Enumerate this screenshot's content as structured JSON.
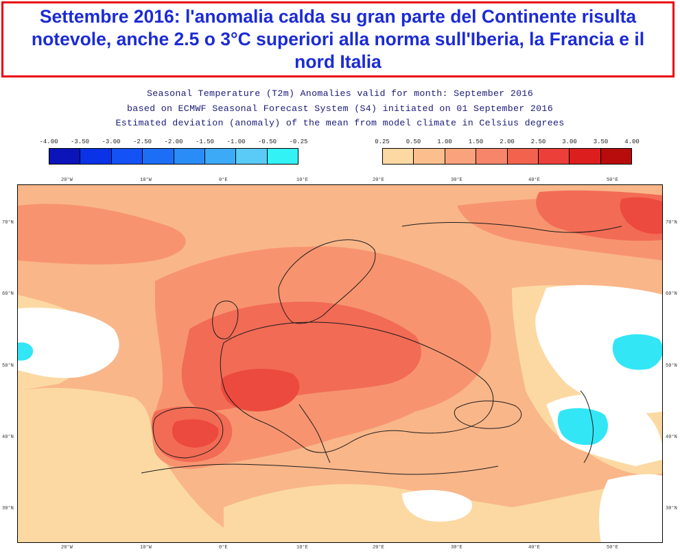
{
  "headline": "Settembre 2016: l'anomalia calda su gran parte del Continente risulta notevole, anche 2.5 o 3°C superiori alla norma sull'Iberia, la Francia e il nord Italia",
  "subtitle": {
    "line1": "Seasonal Temperature (T2m) Anomalies valid for month: September 2016",
    "line2": "based on ECMWF Seasonal Forecast System (S4) initiated on 01 September 2016",
    "line3": "Estimated deviation (anomaly) of the mean from model climate in Celsius degrees"
  },
  "legend_cold": {
    "ticks": [
      "-4.00",
      "-3.50",
      "-3.00",
      "-2.50",
      "-2.00",
      "-1.50",
      "-1.00",
      "-0.50",
      "-0.25"
    ],
    "colors": [
      "#0a14b8",
      "#0a32e6",
      "#1452f5",
      "#1c6ef7",
      "#2a8cf7",
      "#3caaf7",
      "#5acbf7",
      "#33f2f5"
    ]
  },
  "legend_warm": {
    "ticks": [
      "0.25",
      "0.50",
      "1.00",
      "1.50",
      "2.00",
      "2.50",
      "3.00",
      "3.50",
      "4.00"
    ],
    "colors": [
      "#fcd9a3",
      "#fbbf8e",
      "#f9a37c",
      "#f6856a",
      "#f2634e",
      "#ec3f3a",
      "#dc1e1e",
      "#b80c0c"
    ]
  },
  "map": {
    "lon_labels_top": [
      "20°W",
      "10°W",
      "0°E",
      "10°E",
      "20°E",
      "30°E",
      "40°E",
      "50°E"
    ],
    "lon_labels_bottom": [
      "20°W",
      "10°W",
      "0°E",
      "10°E",
      "20°E",
      "30°E",
      "40°E",
      "50°E"
    ],
    "lat_labels": [
      "70°N",
      "60°N",
      "50°N",
      "40°N",
      "30°N"
    ],
    "colors": {
      "background_anomaly": "#f9b689",
      "moderate_anomaly": "#f7946f",
      "strong_anomaly": "#f26b55",
      "very_strong_anomaly": "#ec4a3e",
      "slight_anomaly": "#fcd9a3",
      "neutral": "#ffffff",
      "cold_anomaly": "#33e6f5",
      "coastline": "#1a1a1a"
    }
  }
}
